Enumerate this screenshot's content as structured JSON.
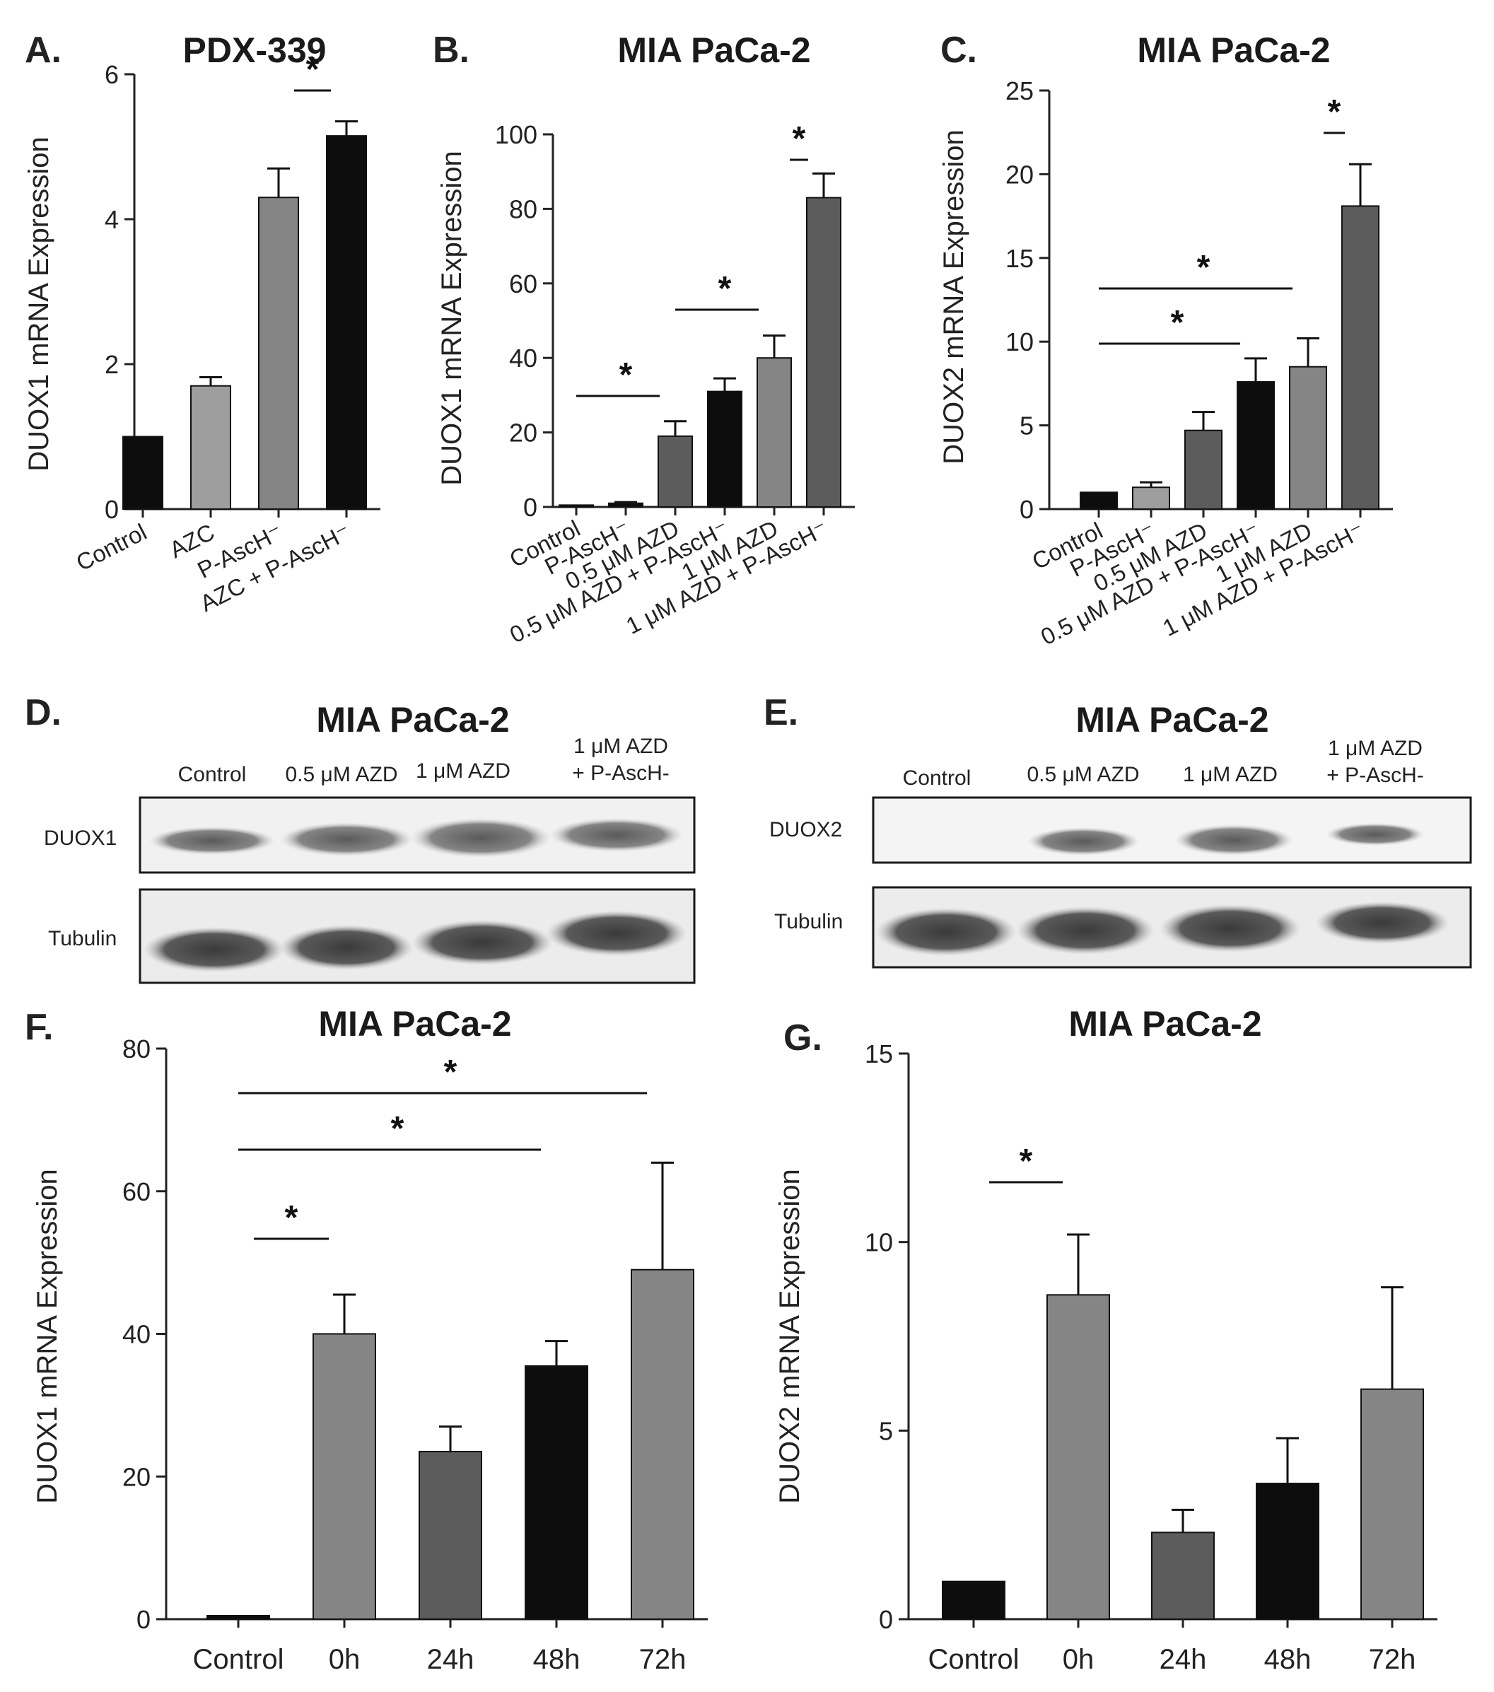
{
  "colors": {
    "black": "#0d0d0d",
    "dark_gray": "#5c5c5c",
    "light_gray": "#9e9e9e",
    "mid_gray": "#858585",
    "axis": "#222222"
  },
  "chart_data": [
    {
      "panel": "A.",
      "type": "bar",
      "title": "PDX-339",
      "ylabel": "DUOX1 mRNA Expression",
      "ylim": [
        0,
        6
      ],
      "yticks": [
        "0",
        "2",
        "4",
        "6"
      ],
      "categories": [
        "Control",
        "AZC",
        "P-AscH⁻",
        "AZC + P-AscH⁻"
      ],
      "values": [
        1.0,
        1.7,
        4.3,
        5.15
      ],
      "errors": [
        0,
        0.12,
        0.4,
        0.2
      ],
      "bar_colors": [
        "black",
        "light_gray",
        "mid_gray",
        "black"
      ],
      "significance": [
        {
          "from": 2,
          "to": 3,
          "label": "*"
        }
      ],
      "grid": false
    },
    {
      "panel": "B.",
      "type": "bar",
      "title": "MIA PaCa-2",
      "ylabel": "DUOX1 mRNA Expression",
      "ylim": [
        0,
        100
      ],
      "yticks": [
        "0",
        "20",
        "40",
        "60",
        "80",
        "100"
      ],
      "categories": [
        "Control",
        "P-AscH⁻",
        "0.5 μM AZD",
        "0.5 μM AZD + P-AscH⁻",
        "1 μM AZD",
        "1 μM AZD + P-AscH⁻"
      ],
      "values": [
        0.5,
        1.0,
        19,
        31,
        40,
        83
      ],
      "errors": [
        0,
        0.3,
        4,
        3.5,
        6,
        6.5
      ],
      "bar_colors": [
        "black",
        "black",
        "dark_gray",
        "black",
        "mid_gray",
        "dark_gray"
      ],
      "significance": [
        {
          "from": 0,
          "to": 2,
          "label": "*"
        },
        {
          "from": 2,
          "to": 4,
          "label": "*"
        },
        {
          "from": 4,
          "to": 5,
          "label": "*"
        }
      ],
      "grid": false
    },
    {
      "panel": "C.",
      "type": "bar",
      "title": "MIA PaCa-2",
      "ylabel": "DUOX2 mRNA Expression",
      "ylim": [
        0,
        25
      ],
      "yticks": [
        "0",
        "5",
        "10",
        "15",
        "20",
        "25"
      ],
      "categories": [
        "Control",
        "P-AscH⁻",
        "0.5 μM AZD",
        "0.5 μM AZD + P-AscH⁻",
        "1 μM AZD",
        "1 μM AZD + P-AscH⁻"
      ],
      "values": [
        1.0,
        1.3,
        4.7,
        7.6,
        8.5,
        18.1
      ],
      "errors": [
        0,
        0.3,
        1.1,
        1.4,
        1.7,
        2.5
      ],
      "bar_colors": [
        "black",
        "light_gray",
        "dark_gray",
        "black",
        "mid_gray",
        "dark_gray"
      ],
      "significance": [
        {
          "from": 0,
          "to": 3,
          "label": "*"
        },
        {
          "from": 0,
          "to": 4,
          "label": "*"
        },
        {
          "from": 4,
          "to": 5,
          "label": "*"
        }
      ],
      "grid": false
    },
    {
      "panel": "F.",
      "type": "bar",
      "title": "MIA PaCa-2",
      "ylabel": "DUOX1 mRNA Expression",
      "ylim": [
        0,
        80
      ],
      "yticks": [
        "0",
        "20",
        "40",
        "60",
        "80"
      ],
      "categories": [
        "Control",
        "0h",
        "24h",
        "48h",
        "72h"
      ],
      "values": [
        0.5,
        40,
        23.5,
        35.5,
        49
      ],
      "errors": [
        0,
        5.5,
        3.5,
        3.5,
        15
      ],
      "bar_colors": [
        "black",
        "mid_gray",
        "dark_gray",
        "black",
        "mid_gray"
      ],
      "significance": [
        {
          "from": 0,
          "to": 1,
          "label": "*"
        },
        {
          "from": 0,
          "to": 3,
          "label": "*"
        },
        {
          "from": 0,
          "to": 4,
          "label": "*"
        }
      ],
      "grid": false
    },
    {
      "panel": "G.",
      "type": "bar",
      "title": "MIA PaCa-2",
      "ylabel": "DUOX2 mRNA Expression",
      "ylim": [
        0,
        15
      ],
      "yticks": [
        "0",
        "5",
        "10",
        "15"
      ],
      "categories": [
        "Control",
        "0h",
        "24h",
        "48h",
        "72h"
      ],
      "values": [
        1.0,
        8.6,
        2.3,
        3.6,
        6.1
      ],
      "errors": [
        0,
        1.6,
        0.6,
        1.2,
        2.7
      ],
      "bar_colors": [
        "black",
        "mid_gray",
        "dark_gray",
        "black",
        "mid_gray"
      ],
      "significance": [
        {
          "from": 0,
          "to": 1,
          "label": "*"
        }
      ],
      "grid": false
    }
  ],
  "blots": [
    {
      "panel": "D.",
      "title": "MIA PaCa-2",
      "lanes": [
        "Control",
        "0.5 μM AZD",
        "1 μM AZD",
        "1 μM AZD",
        "+ P-AscH-"
      ],
      "rows": [
        "DUOX1",
        "Tubulin"
      ]
    },
    {
      "panel": "E.",
      "title": "MIA PaCa-2",
      "lanes": [
        "Control",
        "0.5 μM AZD",
        "1 μM AZD",
        "1 μM AZD",
        "+ P-AscH-"
      ],
      "rows": [
        "DUOX2",
        "Tubulin"
      ]
    }
  ]
}
